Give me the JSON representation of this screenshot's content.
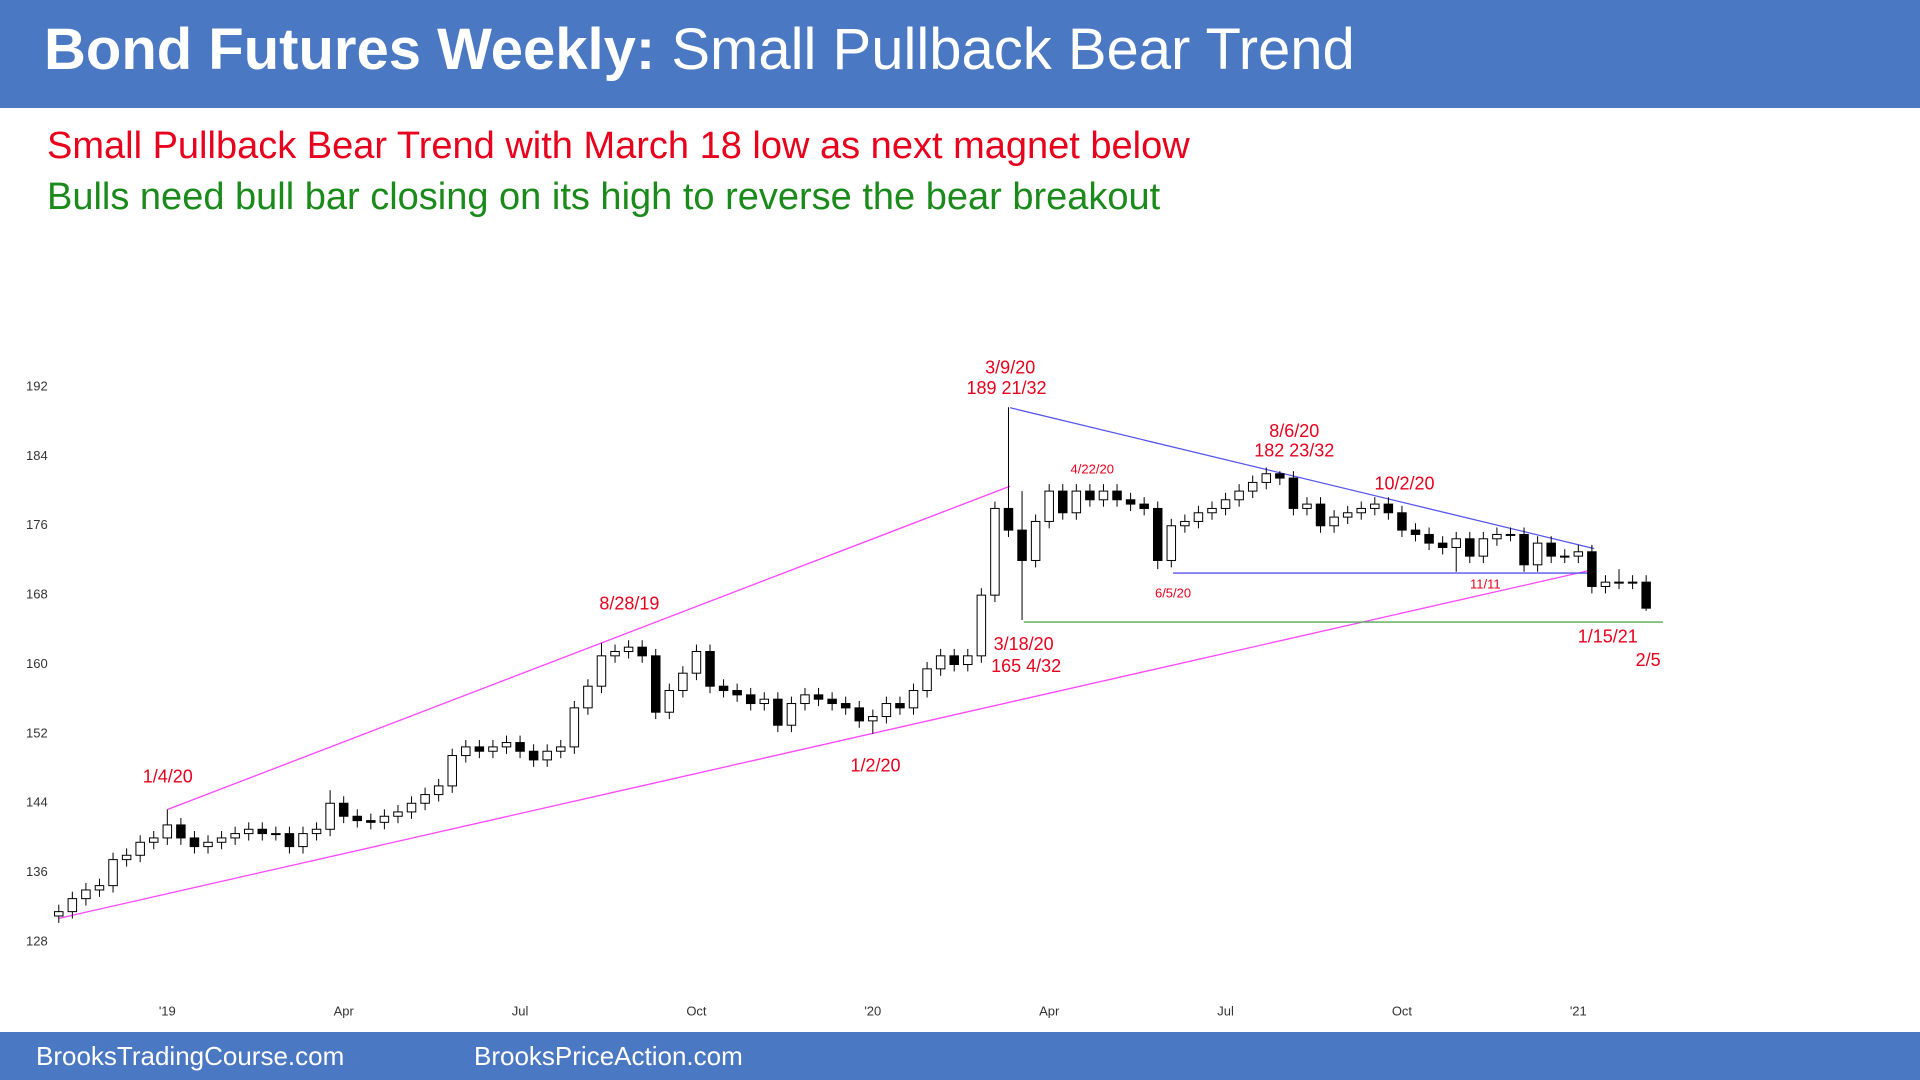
{
  "header": {
    "title_lead": "Bond Futures Weekly:",
    "title_rest": "Small Pullback Bear Trend"
  },
  "notes": [
    "Small Pullback Bear Trend with March 18 low as next magnet below",
    "Bulls need bull bar closing on its high to reverse the bear breakout"
  ],
  "footer": [
    "BrooksTradingCourse.com",
    "BrooksPriceAction.com"
  ],
  "chart_data": {
    "type": "candlestick",
    "categories": [
      null,
      null,
      null,
      null,
      null,
      null,
      null,
      null,
      "'19",
      null,
      null,
      null,
      null,
      null,
      null,
      null,
      null,
      null,
      null,
      null,
      null,
      "Apr",
      null,
      null,
      null,
      null,
      null,
      null,
      null,
      null,
      null,
      null,
      null,
      null,
      "Jul",
      null,
      null,
      null,
      null,
      null,
      null,
      null,
      null,
      null,
      null,
      null,
      null,
      "Oct",
      null,
      null,
      null,
      null,
      null,
      null,
      null,
      null,
      null,
      null,
      null,
      null,
      "'20",
      null,
      null,
      null,
      null,
      null,
      null,
      null,
      null,
      null,
      null,
      null,
      null,
      "Apr",
      null,
      null,
      null,
      null,
      null,
      null,
      null,
      null,
      null,
      null,
      null,
      null,
      "Jul",
      null,
      null,
      null,
      null,
      null,
      null,
      null,
      null,
      null,
      null,
      null,
      null,
      "Oct",
      null,
      null,
      null,
      null,
      null,
      null,
      null,
      null,
      null,
      null,
      null,
      null,
      "'21",
      null,
      null,
      null,
      null,
      null
    ],
    "open": [
      131,
      131.5,
      133,
      134,
      134.5,
      137.5,
      138,
      139.5,
      140,
      141.5,
      140,
      139,
      139.5,
      140,
      140.5,
      141,
      140.5,
      140.5,
      139,
      140.5,
      141,
      144,
      142.5,
      142,
      141.8,
      142.5,
      143,
      144,
      145,
      146,
      149.5,
      150.5,
      150,
      150.5,
      151,
      150,
      149,
      150,
      150.5,
      155,
      157.5,
      161,
      161.5,
      162,
      161,
      154.5,
      157,
      159,
      161.5,
      157.5,
      157,
      156.5,
      155.5,
      156,
      153,
      155.5,
      156.5,
      156,
      155.5,
      155,
      153.5,
      154,
      155.5,
      155,
      157,
      159.5,
      161,
      160,
      161,
      168,
      178,
      175.5,
      172,
      176.5,
      180,
      177.5,
      180,
      179,
      180,
      179,
      178.5,
      178,
      172,
      176,
      176.5,
      177.5,
      178,
      179,
      180,
      181,
      182,
      181.5,
      178,
      178.5,
      176,
      177,
      177.5,
      178,
      178.5,
      177.5,
      175.5,
      175,
      174,
      173.5,
      174.5,
      172.5,
      174.5,
      175,
      175,
      171.5,
      174,
      172.5,
      172.5,
      173,
      169,
      169.5,
      169.5,
      169.5
    ],
    "high": [
      132.3,
      133.8,
      134.8,
      135.3,
      138.3,
      138.8,
      140.3,
      140.8,
      143.3,
      142.3,
      140.8,
      140.3,
      140.8,
      141.3,
      141.8,
      141.8,
      141.3,
      141.3,
      141.3,
      141.8,
      145.5,
      144.8,
      143.3,
      142.8,
      143.3,
      143.8,
      144.8,
      145.8,
      146.8,
      150.3,
      151.3,
      151.3,
      151.3,
      151.8,
      151.8,
      150.8,
      150.8,
      151.3,
      155.8,
      158.3,
      162.5,
      162.3,
      162.8,
      162.8,
      161.8,
      157.8,
      159.8,
      162.3,
      162.3,
      158.3,
      157.8,
      157.3,
      156.8,
      156.8,
      156.3,
      157.3,
      157.3,
      156.8,
      156.3,
      155.8,
      154.8,
      156.3,
      156.3,
      157.8,
      160.3,
      161.8,
      161.8,
      161.8,
      168.8,
      178.8,
      189.67,
      180,
      177.3,
      180.8,
      180.8,
      180.8,
      180.8,
      180.8,
      180.8,
      179.8,
      179.3,
      178.8,
      176.8,
      177.3,
      178.3,
      178.8,
      179.8,
      180.8,
      181.8,
      182.72,
      182.3,
      182.3,
      179.3,
      179.3,
      177.8,
      178.3,
      178.8,
      179.3,
      179.3,
      178.3,
      176.3,
      175.8,
      174.8,
      175.3,
      175.3,
      175.3,
      175.8,
      175.8,
      175.8,
      174.8,
      174.8,
      173.3,
      173.8,
      173.8,
      170.3,
      171,
      170.3,
      170.3
    ],
    "low": [
      130.2,
      130.7,
      132.2,
      133.2,
      133.7,
      136.7,
      137.2,
      138.7,
      139.2,
      139.2,
      138.2,
      138.2,
      138.7,
      139.2,
      139.7,
      139.7,
      139.7,
      138.2,
      138.2,
      139.7,
      140.2,
      141.7,
      141.2,
      141,
      141,
      141.7,
      142.2,
      143.2,
      144.2,
      145.2,
      148.7,
      149.2,
      149.2,
      149.7,
      149.2,
      148.2,
      148.2,
      149.2,
      149.7,
      154.2,
      156.7,
      160.2,
      160.7,
      160.2,
      153.7,
      153.7,
      156.2,
      158.2,
      156.7,
      156.2,
      155.7,
      154.7,
      154.7,
      152.2,
      152.2,
      154.7,
      155.2,
      154.7,
      154.2,
      152.7,
      152,
      153.2,
      154.2,
      154.2,
      156.2,
      158.7,
      159.2,
      159.2,
      160.2,
      167.2,
      174.7,
      165.13,
      171.2,
      175.7,
      176.7,
      176.7,
      178.2,
      178.2,
      178.2,
      177.7,
      177.2,
      171,
      171.2,
      175.2,
      175.7,
      176.7,
      177.2,
      178.2,
      179.2,
      180.2,
      180.7,
      177.2,
      177.2,
      175.2,
      175.2,
      176.2,
      176.7,
      177.2,
      176.7,
      174.7,
      174.2,
      173.2,
      172.7,
      170.7,
      171.7,
      171.7,
      173.7,
      174.2,
      170.7,
      170.7,
      171.7,
      171.7,
      171.7,
      168.2,
      168.2,
      168.7,
      168.7,
      166.2
    ],
    "close": [
      131.5,
      133,
      134,
      134.5,
      137.5,
      138,
      139.5,
      140,
      141.5,
      140,
      139,
      139.5,
      140,
      140.5,
      141,
      140.5,
      140.5,
      139,
      140.5,
      141,
      144,
      142.5,
      142,
      141.8,
      142.5,
      143,
      144,
      145,
      146,
      149.5,
      150.5,
      150,
      150.5,
      151,
      150,
      149,
      150,
      150.5,
      155,
      157.5,
      161,
      161.5,
      162,
      161,
      154.5,
      157,
      159,
      161.5,
      157.5,
      157,
      156.5,
      155.5,
      156,
      153,
      155.5,
      156.5,
      156,
      155.5,
      155,
      153.5,
      154,
      155.5,
      155,
      157,
      159.5,
      161,
      160,
      161,
      168,
      178,
      175.5,
      172,
      176.5,
      180,
      177.5,
      180,
      179,
      180,
      179,
      178.5,
      178,
      172,
      176,
      176.5,
      177.5,
      178,
      179,
      180,
      181,
      182,
      181.5,
      178,
      178.5,
      176,
      177,
      177.5,
      178,
      178.5,
      177.5,
      175.5,
      175,
      174,
      173.5,
      174.5,
      172.5,
      174.5,
      175,
      175,
      171.5,
      174,
      172.5,
      172.5,
      173,
      169,
      169.5,
      169.5,
      169.5,
      166.5
    ],
    "up_color": "#ffffff",
    "down_color": "#000000",
    "ylim": [
      125,
      194
    ],
    "yticks": [
      128,
      136,
      144,
      152,
      160,
      168,
      176,
      184,
      192
    ],
    "annotations": [
      "1/4/20",
      "8/28/19",
      "3/9/20",
      "189 21/32",
      "4/22/20",
      "8/6/20",
      "182 23/32",
      "10/2/20",
      "6/5/20",
      "11/11",
      "3/18/20",
      "165 4/32",
      "1/2/20",
      "1/15/21",
      "2/5"
    ]
  }
}
